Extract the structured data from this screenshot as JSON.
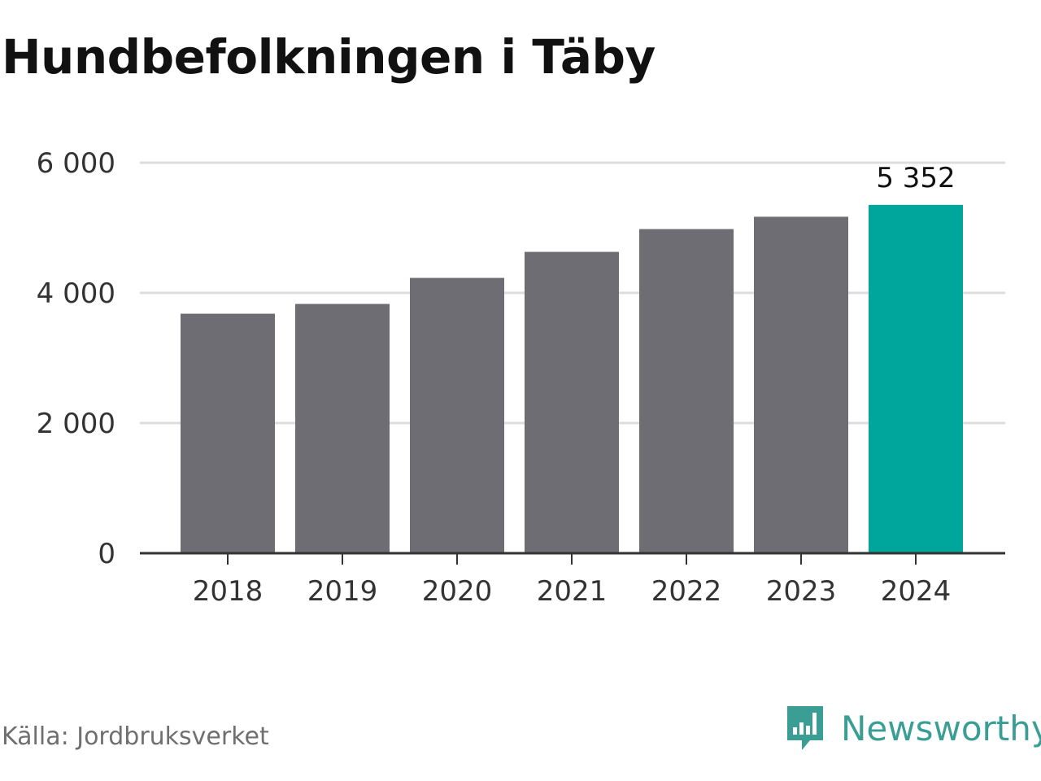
{
  "title": "Hundbefolkningen i Täby",
  "source": "Källa: Jordbruksverket",
  "brand": {
    "name": "Newsworthy",
    "icon": "newsworthy-logo-icon",
    "color": "#3a9e95"
  },
  "chart_data": {
    "type": "bar",
    "categories": [
      "2018",
      "2019",
      "2020",
      "2021",
      "2022",
      "2023",
      "2024"
    ],
    "values": [
      3680,
      3830,
      4230,
      4630,
      4980,
      5170,
      5352
    ],
    "highlight_index": 6,
    "highlight_label": "5 352",
    "title": "Hundbefolkningen i Täby",
    "xlabel": "",
    "ylabel": "",
    "ylim": [
      0,
      6000
    ],
    "yticks": [
      0,
      2000,
      4000,
      6000
    ],
    "ytick_labels": [
      "0",
      "2 000",
      "4 000",
      "6 000"
    ],
    "grid": true,
    "colors": {
      "bar": "#6e6d73",
      "highlight": "#00a59b",
      "grid": "#dddddd",
      "axis": "#333333"
    }
  }
}
